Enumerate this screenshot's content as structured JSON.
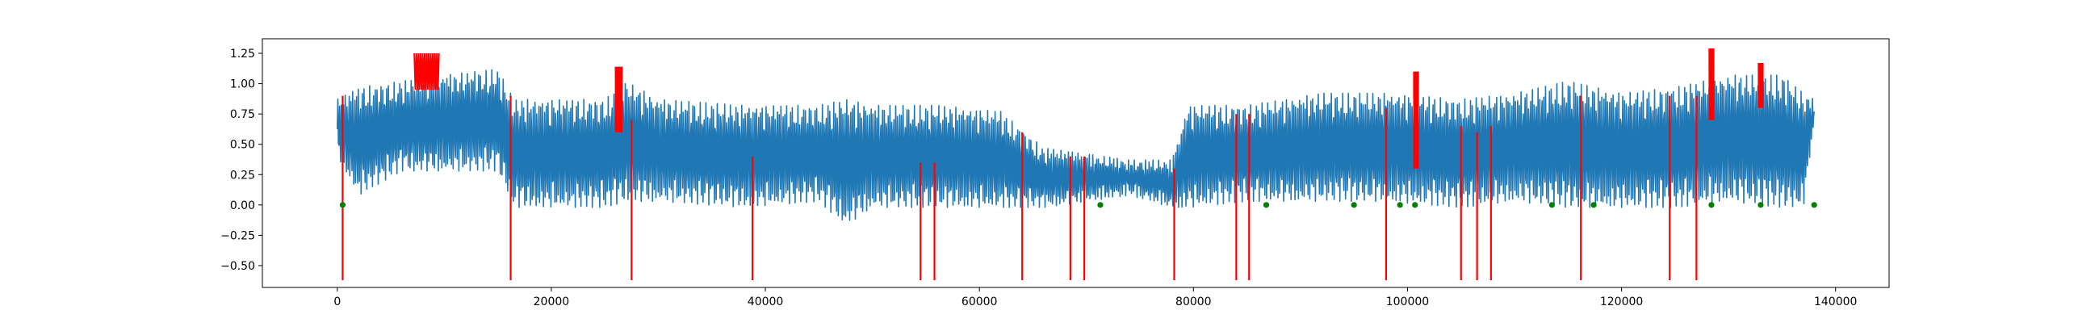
{
  "chart_data": {
    "type": "line",
    "title": "",
    "xlabel": "",
    "ylabel": "",
    "xlim": [
      -7000,
      145000
    ],
    "ylim": [
      -0.68,
      1.37
    ],
    "grid": false,
    "legend": "none",
    "x_ticks": [
      {
        "value": 0,
        "label": "0"
      },
      {
        "value": 20000,
        "label": "20000"
      },
      {
        "value": 40000,
        "label": "40000"
      },
      {
        "value": 60000,
        "label": "60000"
      },
      {
        "value": 80000,
        "label": "80000"
      },
      {
        "value": 100000,
        "label": "100000"
      },
      {
        "value": 120000,
        "label": "120000"
      },
      {
        "value": 140000,
        "label": "140000"
      }
    ],
    "y_ticks": [
      {
        "value": -0.5,
        "label": "−0.50"
      },
      {
        "value": -0.25,
        "label": "−0.25"
      },
      {
        "value": 0.0,
        "label": "0.00"
      },
      {
        "value": 0.25,
        "label": "0.25"
      },
      {
        "value": 0.5,
        "label": "0.50"
      },
      {
        "value": 0.75,
        "label": "0.75"
      },
      {
        "value": 1.0,
        "label": "1.00"
      },
      {
        "value": 1.25,
        "label": "1.25"
      }
    ],
    "series": [
      {
        "color": "#1f77b4",
        "style": "oscillating-signal",
        "x_range": [
          0,
          138000
        ],
        "envelope": [
          {
            "x": 0,
            "lower": 0.4,
            "upper": 0.85
          },
          {
            "x": 2000,
            "lower": 0.1,
            "upper": 0.95
          },
          {
            "x": 6000,
            "lower": 0.3,
            "upper": 1.0
          },
          {
            "x": 10000,
            "lower": 0.3,
            "upper": 1.05
          },
          {
            "x": 15000,
            "lower": 0.3,
            "upper": 1.1
          },
          {
            "x": 16500,
            "lower": 0.0,
            "upper": 0.85
          },
          {
            "x": 25000,
            "lower": 0.0,
            "upper": 0.85
          },
          {
            "x": 27000,
            "lower": 0.05,
            "upper": 1.0
          },
          {
            "x": 30000,
            "lower": 0.05,
            "upper": 0.85
          },
          {
            "x": 38000,
            "lower": 0.0,
            "upper": 0.8
          },
          {
            "x": 45000,
            "lower": 0.05,
            "upper": 0.8
          },
          {
            "x": 47500,
            "lower": -0.15,
            "upper": 0.85
          },
          {
            "x": 50000,
            "lower": 0.0,
            "upper": 0.8
          },
          {
            "x": 56000,
            "lower": 0.0,
            "upper": 0.8
          },
          {
            "x": 62000,
            "lower": 0.0,
            "upper": 0.75
          },
          {
            "x": 66000,
            "lower": 0.0,
            "upper": 0.45
          },
          {
            "x": 70000,
            "lower": 0.05,
            "upper": 0.4
          },
          {
            "x": 74000,
            "lower": 0.1,
            "upper": 0.35
          },
          {
            "x": 78000,
            "lower": 0.0,
            "upper": 0.35
          },
          {
            "x": 79500,
            "lower": 0.0,
            "upper": 0.8
          },
          {
            "x": 85000,
            "lower": 0.05,
            "upper": 0.8
          },
          {
            "x": 92000,
            "lower": 0.05,
            "upper": 0.9
          },
          {
            "x": 98000,
            "lower": 0.05,
            "upper": 0.9
          },
          {
            "x": 105000,
            "lower": 0.0,
            "upper": 0.85
          },
          {
            "x": 110000,
            "lower": 0.05,
            "upper": 0.9
          },
          {
            "x": 115000,
            "lower": 0.0,
            "upper": 1.0
          },
          {
            "x": 120000,
            "lower": 0.0,
            "upper": 0.9
          },
          {
            "x": 125000,
            "lower": 0.0,
            "upper": 0.95
          },
          {
            "x": 130000,
            "lower": 0.05,
            "upper": 1.05
          },
          {
            "x": 135000,
            "lower": 0.0,
            "upper": 1.05
          },
          {
            "x": 137000,
            "lower": 0.0,
            "upper": 0.9
          },
          {
            "x": 138000,
            "lower": 0.7,
            "upper": 0.85
          }
        ]
      }
    ],
    "anomaly_spikes": {
      "color": "#ff0000",
      "x": [
        500,
        16200,
        27500,
        38800,
        54500,
        55800,
        64000,
        68500,
        69800,
        78200,
        84000,
        85200,
        98000,
        105000,
        106500,
        107800,
        116200,
        124500,
        127000
      ],
      "top": [
        0.9,
        0.9,
        0.7,
        0.4,
        0.35,
        0.35,
        0.6,
        0.4,
        0.4,
        0.3,
        0.75,
        0.75,
        0.8,
        0.65,
        0.6,
        0.65,
        0.9,
        0.9,
        0.9
      ],
      "bottom": -0.62
    },
    "highlight_segments": [
      {
        "x_start": 7200,
        "x_end": 9500,
        "lower": 0.95,
        "upper": 1.25,
        "color": "#ff0000"
      },
      {
        "x_start": 26000,
        "x_end": 26600,
        "lower": 0.6,
        "upper": 1.14,
        "color": "#ff0000"
      },
      {
        "x_start": 100600,
        "x_end": 101000,
        "lower": 0.3,
        "upper": 1.1,
        "color": "#ff0000"
      },
      {
        "x_start": 128200,
        "x_end": 128600,
        "lower": 0.7,
        "upper": 1.29,
        "color": "#ff0000"
      },
      {
        "x_start": 132800,
        "x_end": 133200,
        "lower": 0.8,
        "upper": 1.17,
        "color": "#ff0000"
      }
    ],
    "zero_markers": {
      "color": "#008000",
      "x": [
        500,
        71300,
        86800,
        95000,
        99300,
        100700,
        113500,
        117400,
        128400,
        133000,
        138000
      ]
    }
  }
}
